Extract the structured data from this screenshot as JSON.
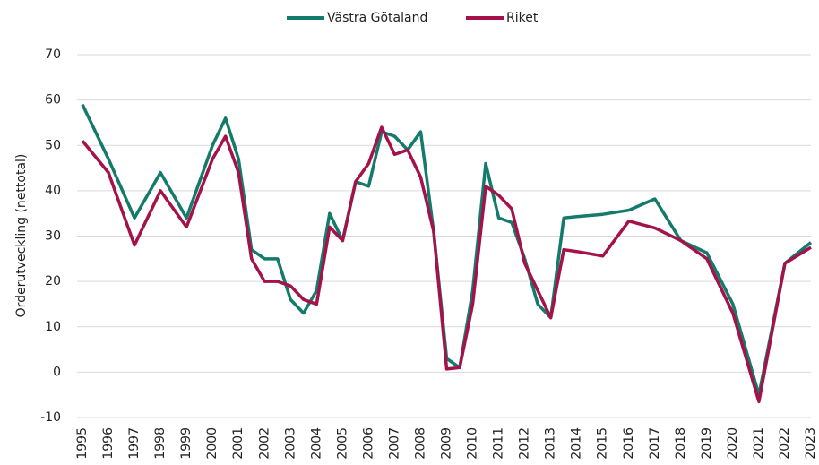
{
  "chart_data": {
    "type": "line",
    "y_label": "Orderutveckling (nettotal)",
    "x": [
      1995,
      1996,
      1997,
      1998,
      1999,
      2000,
      2000.5,
      2001,
      2001.5,
      2002,
      2002.5,
      2003,
      2003.5,
      2004,
      2004.5,
      2005,
      2005.5,
      2006,
      2006.5,
      2007,
      2007.5,
      2008,
      2008.5,
      2009,
      2009.5,
      2010,
      2010.5,
      2011,
      2011.5,
      2012,
      2012.5,
      2013,
      2013.5,
      2014,
      2015,
      2016,
      2017,
      2018,
      2019,
      2020,
      2021,
      2022,
      2023
    ],
    "series": [
      {
        "name": "Västra Götaland",
        "color": "#147a6b",
        "values": [
          59,
          47,
          34,
          44,
          34,
          50,
          56,
          47,
          27,
          25,
          25,
          16,
          13,
          18,
          35,
          29,
          42,
          41,
          53,
          52,
          49,
          53,
          31,
          3,
          1,
          18,
          46,
          34,
          33,
          25,
          15,
          12,
          34,
          34.3,
          34.8,
          35.7,
          38.2,
          29,
          26.3,
          15,
          -5,
          24,
          28.6
        ]
      },
      {
        "name": "Riket",
        "color": "#a3134a",
        "values": [
          51,
          44,
          28,
          40,
          32,
          47,
          52,
          44,
          25,
          20,
          20,
          19,
          16,
          15,
          32,
          29,
          42,
          46,
          54,
          48,
          49,
          43,
          31,
          0.7,
          1,
          15,
          41,
          39,
          36,
          24,
          18,
          12,
          27,
          26.6,
          25.6,
          33.3,
          31.8,
          29,
          25,
          13,
          -6.5,
          24,
          27.5
        ]
      }
    ],
    "xlim": [
      1995,
      2023
    ],
    "xticks": [
      1995,
      1996,
      1997,
      1998,
      1999,
      2000,
      2001,
      2002,
      2003,
      2004,
      2005,
      2006,
      2007,
      2008,
      2009,
      2010,
      2011,
      2012,
      2013,
      2014,
      2015,
      2016,
      2017,
      2018,
      2019,
      2020,
      2021,
      2022,
      2023
    ],
    "ylim": [
      -10,
      70
    ],
    "yticks": [
      -10,
      0,
      10,
      20,
      30,
      40,
      50,
      60,
      70
    ],
    "grid": true,
    "legend": "top"
  }
}
